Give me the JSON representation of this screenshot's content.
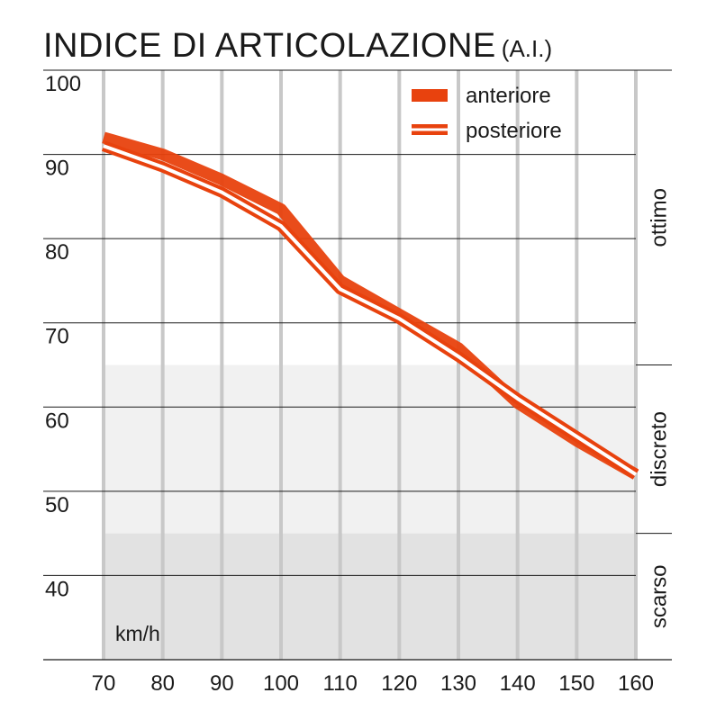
{
  "chart_data": {
    "type": "line",
    "title": "INDICE DI ARTICOLAZIONE",
    "subtitle": "(A.I.)",
    "xlabel": "km/h",
    "ylabel": "",
    "x": [
      70,
      80,
      90,
      100,
      110,
      120,
      130,
      140,
      150,
      160
    ],
    "x_tick_labels": [
      "70",
      "80",
      "90",
      "100",
      "110",
      "120",
      "130",
      "140",
      "150",
      "160"
    ],
    "y_tick_labels": [
      "100",
      "90",
      "80",
      "70",
      "60",
      "50",
      "40"
    ],
    "y_ticks": [
      100,
      90,
      80,
      70,
      60,
      50,
      40
    ],
    "xlim": [
      70,
      160
    ],
    "ylim": [
      30,
      100
    ],
    "grid": true,
    "legend": "top-right",
    "series": [
      {
        "name": "anteriore",
        "style": "solid-thick",
        "values": [
          92,
          90,
          87,
          83.5,
          75,
          71,
          67,
          60.5,
          56,
          52
        ]
      },
      {
        "name": "posteriore",
        "style": "double-line",
        "values": [
          91,
          88.5,
          85.5,
          81.5,
          74,
          70.5,
          66,
          61,
          56.5,
          52
        ]
      }
    ],
    "bands": [
      {
        "label": "ottimo",
        "from": 65,
        "to": 100,
        "color": "#ffffff"
      },
      {
        "label": "discreto",
        "from": 45,
        "to": 65,
        "color": "#f1f1f1"
      },
      {
        "label": "scarso",
        "from": 30,
        "to": 45,
        "color": "#e2e2e2"
      }
    ],
    "colors": {
      "series": "#e8420e",
      "grid_vertical": "#c8c8c8",
      "grid_horizontal": "#1a1a1a"
    }
  }
}
